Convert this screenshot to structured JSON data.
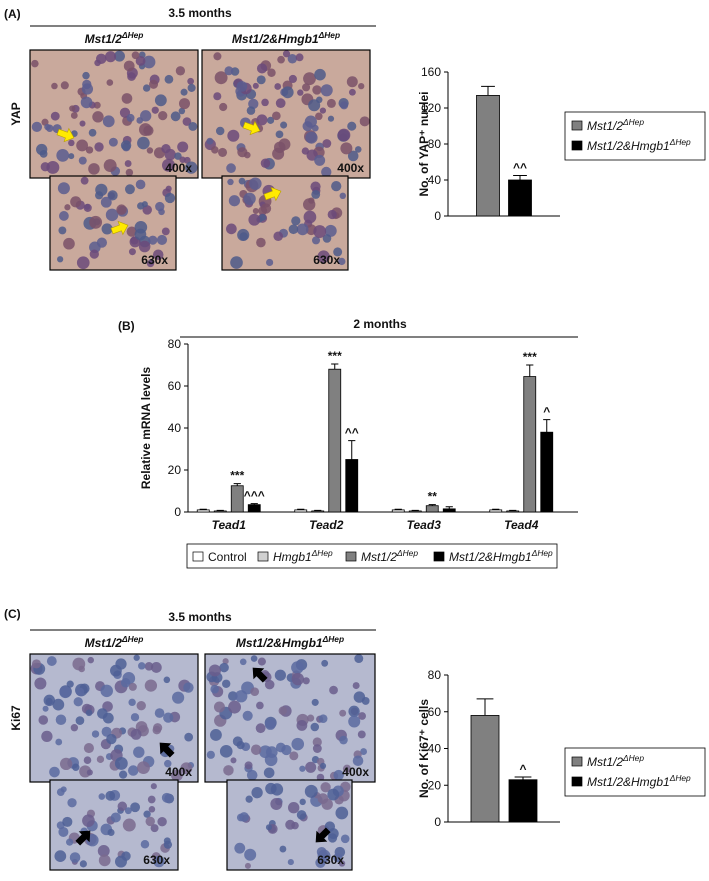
{
  "panels": [
    {
      "label": "(A)",
      "timepoint": "3.5 months",
      "stain": "YAP",
      "groups": [
        {
          "name": "Mst1/2",
          "name_superscript": "ΔHep",
          "magnifications": [
            "400x",
            "630x"
          ]
        },
        {
          "name": "Mst1/2&Hmgb1",
          "name_superscript": "ΔHep",
          "magnifications": [
            "400x",
            "630x"
          ]
        }
      ]
    },
    {
      "label": "(B)"
    },
    {
      "label": "(C)",
      "timepoint": "3.5 months",
      "stain": "Ki67",
      "groups": [
        {
          "name": "Mst1/2",
          "name_superscript": "ΔHep",
          "magnifications": [
            "400x",
            "630x"
          ]
        },
        {
          "name": "Mst1/2&Hmgb1",
          "name_superscript": "ΔHep",
          "magnifications": [
            "400x",
            "630x"
          ]
        }
      ]
    }
  ],
  "chart_data": [
    {
      "type": "bar",
      "ylabel": "No. of YAP⁺ nuclei",
      "categories": [
        null
      ],
      "series": [
        {
          "name": "Mst1/2",
          "name_superscript": "ΔHep",
          "color": "#808080",
          "values": [
            134
          ],
          "errors": [
            10
          ]
        },
        {
          "name": "Mst1/2&Hmgb1",
          "name_superscript": "ΔHep",
          "color": "#000000",
          "values": [
            40
          ],
          "errors": [
            5
          ],
          "annotations": [
            "^^"
          ]
        }
      ],
      "ylim": [
        0,
        160
      ],
      "yticks": [
        0,
        40,
        80,
        120,
        160
      ]
    },
    {
      "type": "bar",
      "title": "2 months",
      "ylabel": "Relative mRNA levels",
      "categories": [
        "Tead1",
        "Tead2",
        "Tead3",
        "Tead4"
      ],
      "series": [
        {
          "name": "Control",
          "color": "#ffffff",
          "values": [
            1,
            1,
            1,
            1
          ],
          "errors": [
            0.3,
            0.3,
            0.3,
            0.3
          ]
        },
        {
          "name": "Hmgb1",
          "name_superscript": "ΔHep",
          "color": "#d0d0d0",
          "values": [
            0.5,
            0.5,
            0.5,
            0.5
          ],
          "errors": [
            0.3,
            0.3,
            0.3,
            0.3
          ]
        },
        {
          "name": "Mst1/2",
          "name_superscript": "ΔHep",
          "color": "#808080",
          "values": [
            12.5,
            68,
            3,
            64.5
          ],
          "errors": [
            1,
            2.5,
            0.5,
            5.5
          ],
          "annotations": [
            "***",
            "***",
            "**",
            "***"
          ]
        },
        {
          "name": "Mst1/2&Hmgb1",
          "name_superscript": "ΔHep",
          "color": "#000000",
          "values": [
            3.5,
            25,
            1.5,
            38
          ],
          "errors": [
            0.5,
            9,
            1,
            6
          ],
          "annotations": [
            "^^^",
            "^^",
            null,
            "^"
          ]
        }
      ],
      "ylim": [
        0,
        80
      ],
      "yticks": [
        0,
        20,
        40,
        60,
        80
      ]
    },
    {
      "type": "bar",
      "ylabel": "No. of Ki67⁺ cells",
      "categories": [
        null
      ],
      "series": [
        {
          "name": "Mst1/2",
          "name_superscript": "ΔHep",
          "color": "#808080",
          "values": [
            58
          ],
          "errors": [
            9
          ]
        },
        {
          "name": "Mst1/2&Hmgb1",
          "name_superscript": "ΔHep",
          "color": "#000000",
          "values": [
            23
          ],
          "errors": [
            1.5
          ],
          "annotations": [
            "^"
          ]
        }
      ],
      "ylim": [
        0,
        80
      ],
      "yticks": [
        0,
        20,
        40,
        60,
        80
      ]
    }
  ]
}
